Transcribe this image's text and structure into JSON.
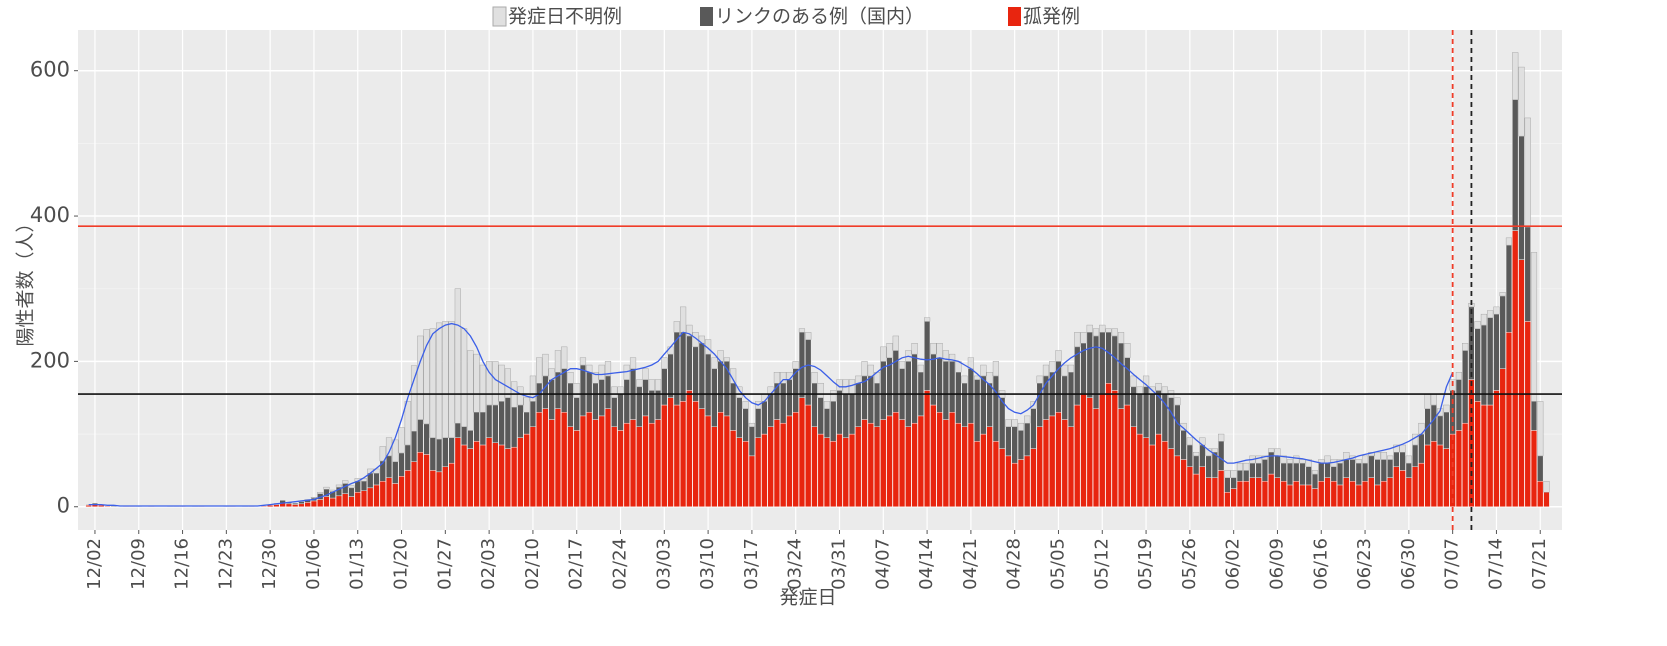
{
  "chart_data": {
    "type": "bar",
    "stacked": true,
    "xlabel": "発症日",
    "ylabel": "陽性者数（人）",
    "categories": [
      null,
      "12/02",
      null,
      null,
      null,
      null,
      null,
      null,
      "12/09",
      null,
      null,
      null,
      null,
      null,
      null,
      "12/16",
      null,
      null,
      null,
      null,
      null,
      null,
      "12/23",
      null,
      null,
      null,
      null,
      null,
      null,
      "12/30",
      null,
      null,
      null,
      null,
      null,
      null,
      "01/06",
      null,
      null,
      null,
      null,
      null,
      null,
      "01/13",
      null,
      null,
      null,
      null,
      null,
      null,
      "01/20",
      null,
      null,
      null,
      null,
      null,
      null,
      "01/27",
      null,
      null,
      null,
      null,
      null,
      null,
      "02/03",
      null,
      null,
      null,
      null,
      null,
      null,
      "02/10",
      null,
      null,
      null,
      null,
      null,
      null,
      "02/17",
      null,
      null,
      null,
      null,
      null,
      null,
      "02/24",
      null,
      null,
      null,
      null,
      null,
      null,
      "03/03",
      null,
      null,
      null,
      null,
      null,
      null,
      "03/10",
      null,
      null,
      null,
      null,
      null,
      null,
      "03/17",
      null,
      null,
      null,
      null,
      null,
      null,
      "03/24",
      null,
      null,
      null,
      null,
      null,
      null,
      "03/31",
      null,
      null,
      null,
      null,
      null,
      null,
      "04/07",
      null,
      null,
      null,
      null,
      null,
      null,
      "04/14",
      null,
      null,
      null,
      null,
      null,
      null,
      "04/21",
      null,
      null,
      null,
      null,
      null,
      null,
      "04/28",
      null,
      null,
      null,
      null,
      null,
      null,
      "05/05",
      null,
      null,
      null,
      null,
      null,
      null,
      "05/12",
      null,
      null,
      null,
      null,
      null,
      null,
      "05/19",
      null,
      null,
      null,
      null,
      null,
      null,
      "05/26",
      null,
      null,
      null,
      null,
      null,
      null,
      "06/02",
      null,
      null,
      null,
      null,
      null,
      null,
      "06/09",
      null,
      null,
      null,
      null,
      null,
      null,
      "06/16",
      null,
      null,
      null,
      null,
      null,
      null,
      "06/23",
      null,
      null,
      null,
      null,
      null,
      null,
      "06/30",
      null,
      null,
      null,
      null,
      null,
      null,
      "07/07",
      null,
      null,
      null,
      null,
      null,
      null,
      "07/14",
      null,
      null,
      null,
      null,
      null,
      null,
      "07/21",
      null
    ],
    "series": [
      {
        "name": "発症日不明例",
        "color": "#e0e0e0",
        "values": [
          0,
          0,
          0,
          0,
          0,
          0,
          0,
          0,
          0,
          0,
          0,
          0,
          0,
          0,
          0,
          0,
          0,
          0,
          0,
          0,
          0,
          0,
          0,
          0,
          0,
          0,
          0,
          0,
          0,
          0,
          0,
          0,
          0,
          0,
          1,
          1,
          1,
          2,
          3,
          2,
          3,
          4,
          3,
          4,
          4,
          6,
          6,
          20,
          25,
          30,
          35,
          60,
          90,
          115,
          130,
          150,
          160,
          160,
          160,
          185,
          135,
          110,
          80,
          65,
          60,
          60,
          50,
          40,
          35,
          25,
          20,
          35,
          35,
          30,
          15,
          30,
          30,
          15,
          20,
          10,
          10,
          15,
          20,
          20,
          15,
          10,
          20,
          15,
          10,
          15,
          15,
          15,
          15,
          10,
          15,
          35,
          15,
          20,
          10,
          20,
          15,
          15,
          5,
          20,
          15,
          10,
          5,
          10,
          10,
          10,
          15,
          15,
          10,
          10,
          5,
          10,
          15,
          20,
          10,
          15,
          15,
          20,
          20,
          10,
          20,
          15,
          15,
          20,
          20,
          20,
          10,
          15,
          15,
          10,
          5,
          15,
          20,
          15,
          10,
          15,
          10,
          15,
          5,
          15,
          15,
          20,
          10,
          10,
          10,
          10,
          10,
          10,
          10,
          15,
          15,
          15,
          15,
          10,
          20,
          15,
          10,
          10,
          10,
          5,
          10,
          15,
          20,
          15,
          10,
          15,
          10,
          10,
          10,
          10,
          10,
          10,
          10,
          5,
          10,
          10,
          5,
          10,
          10,
          10,
          10,
          10,
          10,
          10,
          5,
          5,
          10,
          10,
          5,
          10,
          5,
          10,
          5,
          5,
          10,
          10,
          5,
          10,
          5,
          5,
          10,
          5,
          10,
          10,
          5,
          10,
          10,
          10,
          15,
          15,
          20,
          15,
          10,
          10,
          15,
          10,
          10,
          5,
          10,
          15,
          10,
          10,
          5,
          10,
          65,
          95,
          150,
          205,
          75,
          15
        ]
      },
      {
        "name": "リンクのある例（国内）",
        "color": "#595959",
        "values": [
          1,
          2,
          1,
          0,
          1,
          0,
          0,
          0,
          1,
          0,
          0,
          0,
          0,
          1,
          1,
          0,
          0,
          1,
          0,
          0,
          0,
          0,
          1,
          0,
          0,
          1,
          0,
          0,
          0,
          1,
          2,
          4,
          3,
          2,
          3,
          3,
          4,
          8,
          10,
          9,
          12,
          14,
          12,
          15,
          13,
          20,
          16,
          28,
          30,
          30,
          32,
          35,
          42,
          45,
          42,
          45,
          45,
          40,
          35,
          20,
          25,
          25,
          40,
          45,
          45,
          52,
          60,
          70,
          55,
          45,
          30,
          35,
          40,
          45,
          55,
          50,
          60,
          60,
          45,
          70,
          55,
          50,
          50,
          45,
          40,
          50,
          60,
          70,
          55,
          50,
          45,
          40,
          50,
          60,
          100,
          95,
          75,
          75,
          90,
          85,
          80,
          70,
          75,
          65,
          55,
          45,
          40,
          40,
          45,
          45,
          50,
          55,
          50,
          60,
          90,
          90,
          60,
          50,
          40,
          55,
          60,
          60,
          55,
          60,
          60,
          65,
          60,
          80,
          80,
          85,
          70,
          90,
          95,
          60,
          95,
          70,
          75,
          80,
          70,
          70,
          60,
          75,
          85,
          80,
          60,
          90,
          70,
          40,
          50,
          40,
          45,
          55,
          60,
          60,
          60,
          70,
          60,
          75,
          80,
          70,
          90,
          100,
          85,
          70,
          75,
          90,
          65,
          55,
          55,
          70,
          70,
          60,
          65,
          70,
          70,
          40,
          30,
          25,
          30,
          30,
          35,
          40,
          20,
          15,
          15,
          15,
          20,
          20,
          30,
          30,
          30,
          25,
          30,
          25,
          30,
          25,
          20,
          25,
          20,
          20,
          30,
          25,
          30,
          30,
          25,
          30,
          35,
          30,
          25,
          20,
          25,
          20,
          30,
          40,
          50,
          50,
          40,
          50,
          60,
          70,
          100,
          100,
          100,
          110,
          120,
          105,
          100,
          120,
          180,
          170,
          130,
          40,
          35,
          0
        ]
      },
      {
        "name": "孤発例",
        "color": "#e8250f",
        "values": [
          2,
          3,
          2,
          1,
          0,
          0,
          1,
          1,
          0,
          0,
          1,
          0,
          0,
          0,
          0,
          1,
          0,
          0,
          1,
          0,
          0,
          0,
          0,
          1,
          0,
          0,
          1,
          0,
          1,
          2,
          3,
          5,
          4,
          3,
          4,
          6,
          8,
          10,
          14,
          12,
          15,
          18,
          14,
          20,
          22,
          26,
          30,
          35,
          40,
          32,
          42,
          50,
          62,
          75,
          72,
          50,
          48,
          55,
          60,
          95,
          85,
          80,
          90,
          85,
          95,
          88,
          85,
          80,
          82,
          95,
          100,
          110,
          130,
          135,
          120,
          135,
          130,
          110,
          105,
          125,
          130,
          120,
          125,
          135,
          110,
          105,
          115,
          120,
          110,
          125,
          115,
          120,
          140,
          150,
          140,
          145,
          160,
          145,
          135,
          125,
          110,
          130,
          125,
          105,
          95,
          90,
          70,
          95,
          100,
          110,
          120,
          115,
          125,
          130,
          150,
          140,
          110,
          100,
          95,
          90,
          100,
          95,
          100,
          110,
          120,
          115,
          110,
          120,
          125,
          130,
          120,
          110,
          115,
          125,
          160,
          140,
          130,
          120,
          130,
          115,
          110,
          115,
          90,
          100,
          110,
          90,
          80,
          70,
          60,
          65,
          70,
          80,
          110,
          120,
          125,
          130,
          120,
          110,
          140,
          155,
          150,
          135,
          155,
          170,
          160,
          135,
          140,
          110,
          100,
          95,
          85,
          100,
          90,
          80,
          70,
          65,
          55,
          45,
          55,
          40,
          40,
          50,
          20,
          25,
          35,
          35,
          40,
          40,
          35,
          45,
          40,
          35,
          30,
          35,
          30,
          30,
          25,
          35,
          40,
          35,
          30,
          40,
          35,
          30,
          35,
          40,
          30,
          35,
          40,
          55,
          50,
          40,
          55,
          60,
          85,
          90,
          85,
          80,
          100,
          105,
          115,
          175,
          145,
          140,
          140,
          160,
          190,
          240,
          380,
          340,
          255,
          105,
          35,
          20
        ]
      }
    ],
    "trend": {
      "color": "#3b5fe8",
      "values": [
        3,
        3,
        3,
        2,
        2,
        1,
        1,
        1,
        1,
        1,
        1,
        1,
        1,
        1,
        1,
        1,
        1,
        1,
        1,
        1,
        1,
        1,
        1,
        1,
        1,
        1,
        1,
        1,
        2,
        3,
        4,
        5,
        6,
        7,
        8,
        9,
        10,
        13,
        16,
        20,
        24,
        28,
        32,
        35,
        40,
        46,
        53,
        60,
        75,
        95,
        120,
        150,
        175,
        200,
        222,
        238,
        245,
        250,
        252,
        250,
        245,
        235,
        220,
        200,
        185,
        175,
        170,
        165,
        160,
        155,
        152,
        150,
        155,
        165,
        175,
        180,
        185,
        190,
        190,
        188,
        185,
        182,
        182,
        183,
        184,
        185,
        186,
        188,
        190,
        192,
        195,
        200,
        210,
        220,
        230,
        240,
        238,
        232,
        225,
        218,
        210,
        200,
        190,
        175,
        160,
        150,
        143,
        140,
        145,
        155,
        165,
        175,
        175,
        185,
        192,
        195,
        193,
        188,
        180,
        172,
        165,
        165,
        167,
        170,
        172,
        178,
        185,
        192,
        195,
        200,
        205,
        207,
        205,
        203,
        202,
        203,
        205,
        203,
        202,
        200,
        195,
        190,
        183,
        175,
        168,
        158,
        145,
        135,
        130,
        128,
        133,
        140,
        155,
        170,
        180,
        190,
        198,
        205,
        210,
        215,
        218,
        220,
        218,
        212,
        205,
        197,
        190,
        182,
        175,
        168,
        160,
        152,
        142,
        130,
        115,
        108,
        100,
        92,
        85,
        78,
        72,
        66,
        60,
        60,
        62,
        64,
        65,
        67,
        69,
        70,
        70,
        69,
        68,
        67,
        66,
        64,
        62,
        60,
        60,
        61,
        63,
        65,
        67,
        70,
        72,
        74,
        76,
        78,
        80,
        83,
        86,
        90,
        95,
        100,
        110,
        120,
        132,
        165,
        185,
        null,
        null,
        null,
        null,
        null,
        null,
        null,
        null,
        null,
        null,
        null,
        null,
        null,
        null,
        null
      ]
    },
    "hlines": [
      {
        "value": 386,
        "color": "#f03c28"
      },
      {
        "value": 155,
        "color": "#111111"
      }
    ],
    "vlines": [
      {
        "index": 218,
        "color": "#f03c28",
        "dash": true
      },
      {
        "index": 221,
        "color": "#222222",
        "dash": true
      }
    ],
    "ylim": [
      -32,
      656
    ],
    "yticks": [
      0,
      200,
      400,
      600
    ],
    "minor_yticks": [
      100,
      300,
      500
    ],
    "grid": true,
    "legend": "top"
  }
}
